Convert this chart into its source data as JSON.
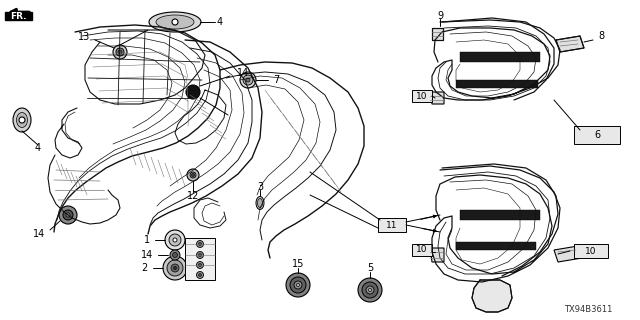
{
  "bg_color": "#ffffff",
  "diagram_code": "TX94B3611",
  "fig_width": 6.4,
  "fig_height": 3.2,
  "dpi": 100,
  "black": "#000000",
  "dark": "#111111",
  "gray": "#666666",
  "lgray": "#aaaaaa",
  "dgray": "#333333"
}
